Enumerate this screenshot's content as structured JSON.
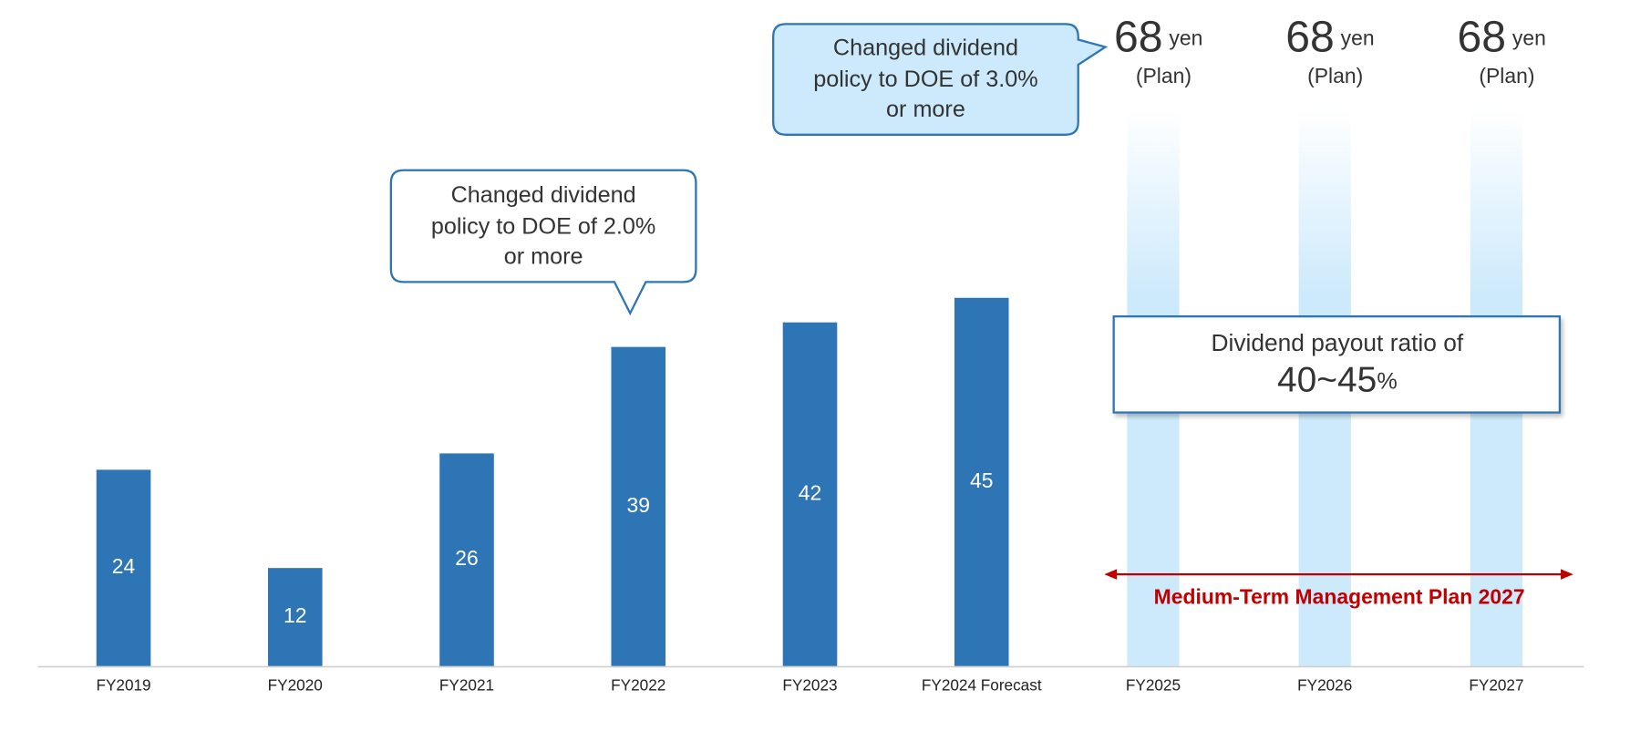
{
  "chart_data": {
    "type": "bar",
    "categories": [
      "FY2019",
      "FY2020",
      "FY2021",
      "FY2022",
      "FY2023",
      "FY2024 Forecast",
      "FY2025",
      "FY2026",
      "FY2027"
    ],
    "values": [
      24,
      12,
      26,
      39,
      42,
      45,
      null,
      null,
      null
    ],
    "plan_values": [
      null,
      null,
      null,
      null,
      null,
      null,
      68,
      68,
      68
    ],
    "color": "#2e75b6",
    "plan_color": "#cdeafc",
    "plan_unit": "yen",
    "plan_label": "(Plan)",
    "callout_doe_2": [
      "Changed dividend",
      "policy to DOE of 2.0%",
      "or more"
    ],
    "callout_doe_3": [
      "Changed dividend",
      "policy to DOE of 3.0%",
      "or more"
    ],
    "payout_box": {
      "text": "Dividend payout ratio of",
      "range": "40~45",
      "unit": "%"
    },
    "plan_period": "Medium-Term Management Plan 2027"
  }
}
